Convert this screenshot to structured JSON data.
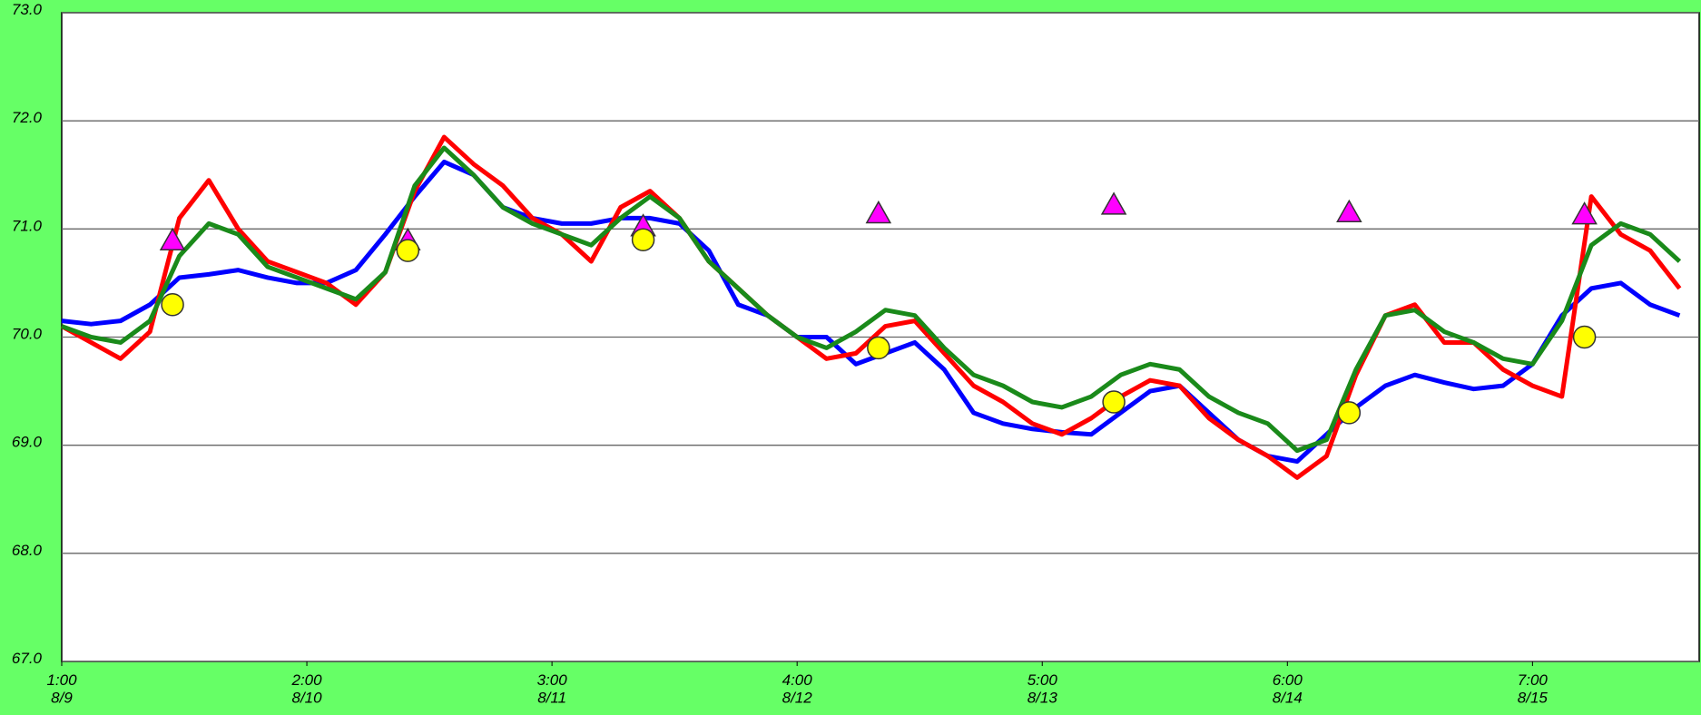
{
  "chart_data": {
    "type": "line",
    "x": [
      0,
      3,
      6,
      9,
      12,
      15,
      18,
      21,
      24,
      27,
      30,
      33,
      36,
      39,
      42,
      45,
      48,
      51,
      54,
      57,
      60,
      63,
      66,
      69,
      72,
      75,
      78,
      81,
      84,
      87,
      90,
      93,
      96,
      99,
      102,
      105,
      108,
      111,
      114,
      117,
      120,
      123,
      126,
      129,
      132,
      135,
      138,
      141,
      144,
      147,
      150,
      153,
      156,
      159,
      162,
      165
    ],
    "xlim": [
      0,
      167
    ],
    "xticks": [
      {
        "value": 0,
        "label": "1:00\n8/9"
      },
      {
        "value": 25,
        "label": "2:00\n8/10"
      },
      {
        "value": 50,
        "label": "3:00\n8/11"
      },
      {
        "value": 75,
        "label": "4:00\n8/12"
      },
      {
        "value": 100,
        "label": "5:00\n8/13"
      },
      {
        "value": 125,
        "label": "6:00\n8/14"
      },
      {
        "value": 150,
        "label": "7:00\n8/15"
      }
    ],
    "ylim": [
      67,
      73
    ],
    "yticks": [
      {
        "value": 67,
        "label": "67.0"
      },
      {
        "value": 68,
        "label": "68.0"
      },
      {
        "value": 69,
        "label": "69.0"
      },
      {
        "value": 70,
        "label": "70.0"
      },
      {
        "value": 71,
        "label": "71.0"
      },
      {
        "value": 72,
        "label": "72.0"
      },
      {
        "value": 73,
        "label": "73.0"
      }
    ],
    "grid": true,
    "series": [
      {
        "color": "#0000ff",
        "values": [
          70.15,
          70.12,
          70.15,
          70.3,
          70.55,
          70.58,
          70.62,
          70.55,
          70.5,
          70.5,
          70.62,
          70.95,
          71.3,
          71.62,
          71.5,
          71.2,
          71.1,
          71.05,
          71.05,
          71.1,
          71.1,
          71.05,
          70.8,
          70.3,
          70.2,
          70.0,
          70.0,
          69.75,
          69.85,
          69.95,
          69.7,
          69.3,
          69.2,
          69.15,
          69.12,
          69.1,
          69.3,
          69.5,
          69.55,
          69.3,
          69.05,
          68.9,
          68.85,
          69.1,
          69.35,
          69.55,
          69.65,
          69.58,
          69.52,
          69.55,
          69.75,
          70.2,
          70.45,
          70.5,
          70.3,
          70.2
        ]
      },
      {
        "color": "#ff0000",
        "values": [
          70.1,
          69.95,
          69.8,
          70.05,
          71.1,
          71.45,
          71.0,
          70.7,
          70.6,
          70.5,
          70.3,
          70.6,
          71.35,
          71.85,
          71.6,
          71.4,
          71.1,
          70.95,
          70.7,
          71.2,
          71.35,
          71.1,
          70.7,
          70.45,
          70.2,
          70.0,
          69.8,
          69.85,
          70.1,
          70.15,
          69.85,
          69.55,
          69.4,
          69.2,
          69.1,
          69.25,
          69.45,
          69.6,
          69.55,
          69.25,
          69.05,
          68.9,
          68.7,
          68.9,
          69.65,
          70.2,
          70.3,
          69.95,
          69.95,
          69.7,
          69.55,
          69.45,
          71.3,
          70.95,
          70.8,
          70.45
        ]
      },
      {
        "color": "#1a8a1a",
        "values": [
          70.1,
          70.0,
          69.95,
          70.15,
          70.75,
          71.05,
          70.95,
          70.65,
          70.55,
          70.45,
          70.35,
          70.6,
          71.4,
          71.75,
          71.5,
          71.2,
          71.05,
          70.95,
          70.85,
          71.1,
          71.3,
          71.1,
          70.7,
          70.45,
          70.2,
          70.0,
          69.9,
          70.05,
          70.25,
          70.2,
          69.9,
          69.65,
          69.55,
          69.4,
          69.35,
          69.45,
          69.65,
          69.75,
          69.7,
          69.45,
          69.3,
          69.2,
          68.95,
          69.05,
          69.7,
          70.2,
          70.25,
          70.05,
          69.95,
          69.8,
          69.75,
          70.15,
          70.85,
          71.05,
          70.95,
          70.7
        ]
      }
    ],
    "markers": [
      {
        "marker": "triangle",
        "color": "#ff00ff",
        "x": [
          11.3,
          35.3,
          59.3,
          83.3,
          107.3,
          131.3,
          155.3
        ],
        "values": [
          70.9,
          70.9,
          71.03,
          71.15,
          71.23,
          71.16,
          71.14
        ]
      },
      {
        "marker": "circle",
        "color": "#ffff00",
        "x": [
          11.3,
          35.3,
          59.3,
          83.3,
          107.3,
          131.3,
          155.3
        ],
        "values": [
          70.3,
          70.8,
          70.9,
          69.9,
          69.4,
          69.3,
          70.0
        ]
      }
    ]
  }
}
